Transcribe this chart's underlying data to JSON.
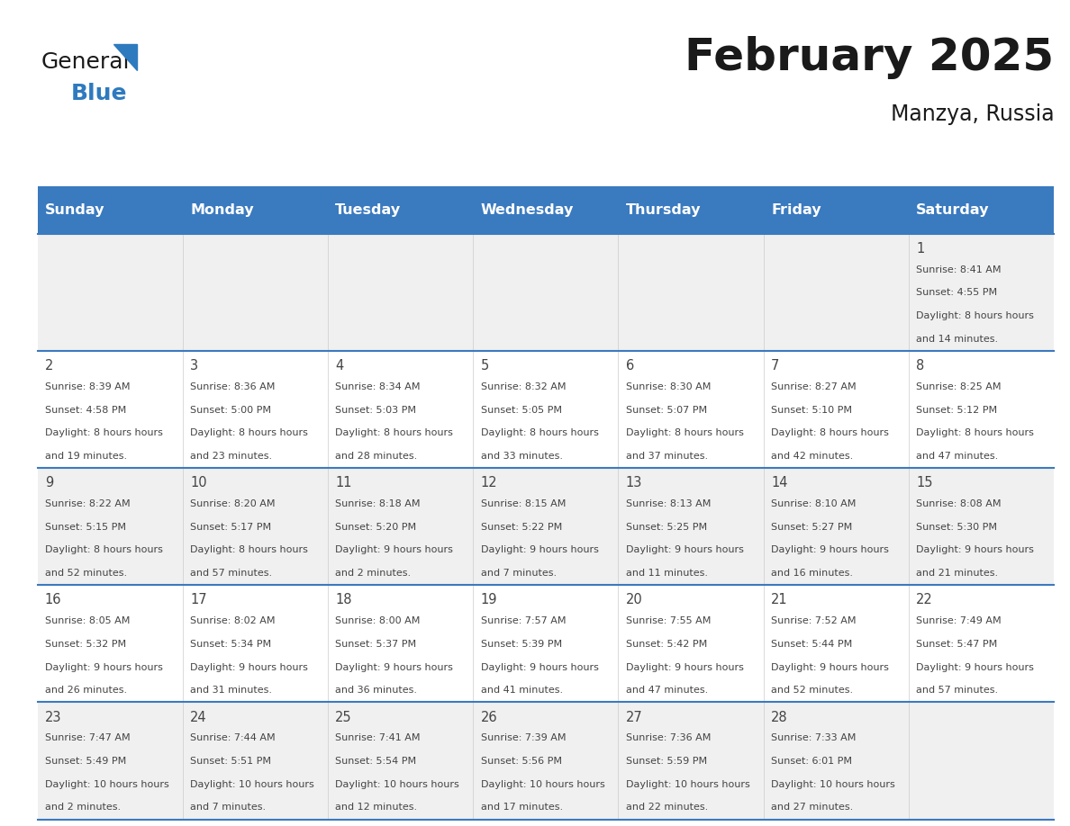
{
  "title": "February 2025",
  "subtitle": "Manzya, Russia",
  "days_of_week": [
    "Sunday",
    "Monday",
    "Tuesday",
    "Wednesday",
    "Thursday",
    "Friday",
    "Saturday"
  ],
  "header_bg": "#3a7abf",
  "header_text_color": "#ffffff",
  "cell_bg_light": "#f0f0f0",
  "cell_bg_white": "#ffffff",
  "border_color": "#3a7abf",
  "text_color": "#444444",
  "title_color": "#1a1a1a",
  "days": [
    {
      "date": 1,
      "col": 6,
      "row": 0,
      "sunrise": "8:41 AM",
      "sunset": "4:55 PM",
      "daylight": "8 hours and 14 minutes."
    },
    {
      "date": 2,
      "col": 0,
      "row": 1,
      "sunrise": "8:39 AM",
      "sunset": "4:58 PM",
      "daylight": "8 hours and 19 minutes."
    },
    {
      "date": 3,
      "col": 1,
      "row": 1,
      "sunrise": "8:36 AM",
      "sunset": "5:00 PM",
      "daylight": "8 hours and 23 minutes."
    },
    {
      "date": 4,
      "col": 2,
      "row": 1,
      "sunrise": "8:34 AM",
      "sunset": "5:03 PM",
      "daylight": "8 hours and 28 minutes."
    },
    {
      "date": 5,
      "col": 3,
      "row": 1,
      "sunrise": "8:32 AM",
      "sunset": "5:05 PM",
      "daylight": "8 hours and 33 minutes."
    },
    {
      "date": 6,
      "col": 4,
      "row": 1,
      "sunrise": "8:30 AM",
      "sunset": "5:07 PM",
      "daylight": "8 hours and 37 minutes."
    },
    {
      "date": 7,
      "col": 5,
      "row": 1,
      "sunrise": "8:27 AM",
      "sunset": "5:10 PM",
      "daylight": "8 hours and 42 minutes."
    },
    {
      "date": 8,
      "col": 6,
      "row": 1,
      "sunrise": "8:25 AM",
      "sunset": "5:12 PM",
      "daylight": "8 hours and 47 minutes."
    },
    {
      "date": 9,
      "col": 0,
      "row": 2,
      "sunrise": "8:22 AM",
      "sunset": "5:15 PM",
      "daylight": "8 hours and 52 minutes."
    },
    {
      "date": 10,
      "col": 1,
      "row": 2,
      "sunrise": "8:20 AM",
      "sunset": "5:17 PM",
      "daylight": "8 hours and 57 minutes."
    },
    {
      "date": 11,
      "col": 2,
      "row": 2,
      "sunrise": "8:18 AM",
      "sunset": "5:20 PM",
      "daylight": "9 hours and 2 minutes."
    },
    {
      "date": 12,
      "col": 3,
      "row": 2,
      "sunrise": "8:15 AM",
      "sunset": "5:22 PM",
      "daylight": "9 hours and 7 minutes."
    },
    {
      "date": 13,
      "col": 4,
      "row": 2,
      "sunrise": "8:13 AM",
      "sunset": "5:25 PM",
      "daylight": "9 hours and 11 minutes."
    },
    {
      "date": 14,
      "col": 5,
      "row": 2,
      "sunrise": "8:10 AM",
      "sunset": "5:27 PM",
      "daylight": "9 hours and 16 minutes."
    },
    {
      "date": 15,
      "col": 6,
      "row": 2,
      "sunrise": "8:08 AM",
      "sunset": "5:30 PM",
      "daylight": "9 hours and 21 minutes."
    },
    {
      "date": 16,
      "col": 0,
      "row": 3,
      "sunrise": "8:05 AM",
      "sunset": "5:32 PM",
      "daylight": "9 hours and 26 minutes."
    },
    {
      "date": 17,
      "col": 1,
      "row": 3,
      "sunrise": "8:02 AM",
      "sunset": "5:34 PM",
      "daylight": "9 hours and 31 minutes."
    },
    {
      "date": 18,
      "col": 2,
      "row": 3,
      "sunrise": "8:00 AM",
      "sunset": "5:37 PM",
      "daylight": "9 hours and 36 minutes."
    },
    {
      "date": 19,
      "col": 3,
      "row": 3,
      "sunrise": "7:57 AM",
      "sunset": "5:39 PM",
      "daylight": "9 hours and 41 minutes."
    },
    {
      "date": 20,
      "col": 4,
      "row": 3,
      "sunrise": "7:55 AM",
      "sunset": "5:42 PM",
      "daylight": "9 hours and 47 minutes."
    },
    {
      "date": 21,
      "col": 5,
      "row": 3,
      "sunrise": "7:52 AM",
      "sunset": "5:44 PM",
      "daylight": "9 hours and 52 minutes."
    },
    {
      "date": 22,
      "col": 6,
      "row": 3,
      "sunrise": "7:49 AM",
      "sunset": "5:47 PM",
      "daylight": "9 hours and 57 minutes."
    },
    {
      "date": 23,
      "col": 0,
      "row": 4,
      "sunrise": "7:47 AM",
      "sunset": "5:49 PM",
      "daylight": "10 hours and 2 minutes."
    },
    {
      "date": 24,
      "col": 1,
      "row": 4,
      "sunrise": "7:44 AM",
      "sunset": "5:51 PM",
      "daylight": "10 hours and 7 minutes."
    },
    {
      "date": 25,
      "col": 2,
      "row": 4,
      "sunrise": "7:41 AM",
      "sunset": "5:54 PM",
      "daylight": "10 hours and 12 minutes."
    },
    {
      "date": 26,
      "col": 3,
      "row": 4,
      "sunrise": "7:39 AM",
      "sunset": "5:56 PM",
      "daylight": "10 hours and 17 minutes."
    },
    {
      "date": 27,
      "col": 4,
      "row": 4,
      "sunrise": "7:36 AM",
      "sunset": "5:59 PM",
      "daylight": "10 hours and 22 minutes."
    },
    {
      "date": 28,
      "col": 5,
      "row": 4,
      "sunrise": "7:33 AM",
      "sunset": "6:01 PM",
      "daylight": "10 hours and 27 minutes."
    }
  ],
  "num_rows": 5,
  "logo_triangle_color": "#2e7abf"
}
